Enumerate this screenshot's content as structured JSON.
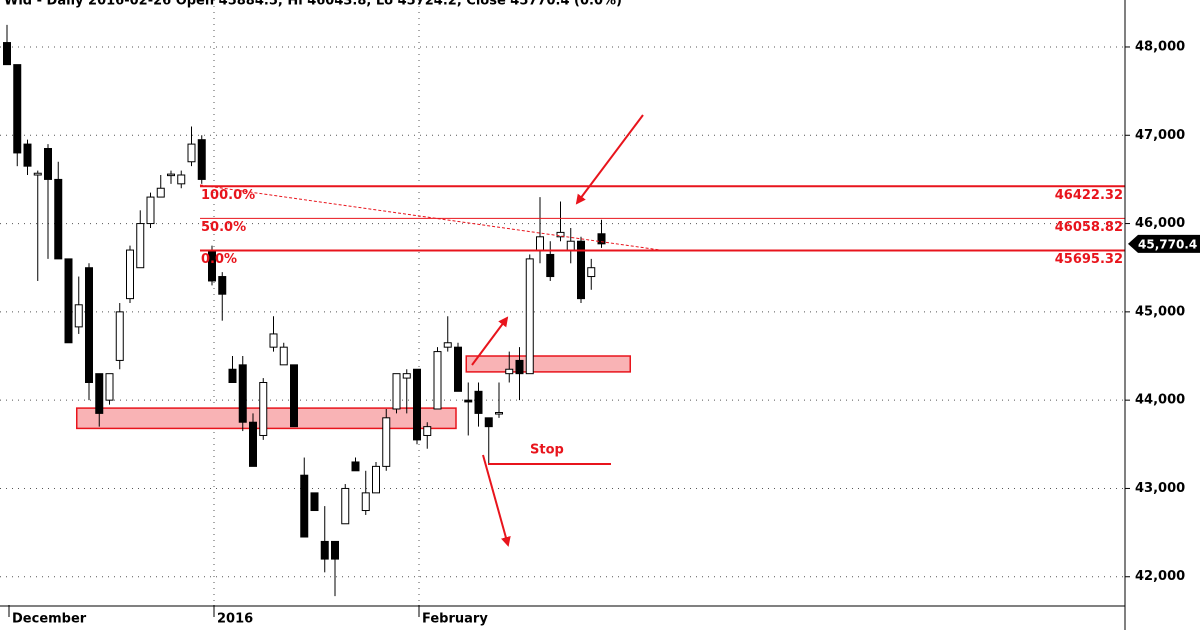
{
  "chart_data": {
    "type": "candlestick",
    "title": "Wld - Daily 2016-02-26 Open 45884.5, Hi 46043.8, Lo 45724.2, Close 45770.4 (0.0%)",
    "categories": [
      "December",
      null,
      null,
      null,
      null,
      null,
      null,
      null,
      null,
      null,
      null,
      null,
      null,
      null,
      null,
      null,
      null,
      null,
      null,
      null,
      "2016",
      null,
      null,
      null,
      null,
      null,
      null,
      null,
      null,
      null,
      null,
      null,
      null,
      null,
      null,
      null,
      null,
      null,
      null,
      null,
      "February",
      null,
      null,
      null,
      null,
      null,
      null,
      null,
      null,
      null,
      null,
      null,
      null,
      null,
      null,
      null,
      null,
      null,
      null
    ],
    "open": [
      48050,
      47800,
      46900,
      46550,
      46850,
      46500,
      45600,
      44830,
      45500,
      44300,
      44000,
      44450,
      45150,
      45500,
      46000,
      46300,
      46550,
      46450,
      46700,
      46950,
      45700,
      45400,
      44350,
      44400,
      43750,
      43600,
      44600,
      44400,
      44400,
      43150,
      42950,
      42400,
      42400,
      42600,
      43300,
      42750,
      42950,
      43250,
      43900,
      44250,
      44350,
      43600,
      43900,
      44600,
      44600,
      44000,
      44100,
      43800,
      43850,
      44300,
      44450,
      44300,
      45700,
      45650,
      45850,
      45700,
      45800,
      45400,
      45884.5
    ],
    "high": [
      48250,
      47800,
      46950,
      46600,
      46900,
      46700,
      45600,
      45400,
      45550,
      44300,
      44300,
      45100,
      45750,
      46150,
      46350,
      46550,
      46600,
      46600,
      47100,
      47000,
      45750,
      45450,
      44500,
      44500,
      43850,
      44250,
      44950,
      44650,
      44400,
      43350,
      42950,
      42800,
      42400,
      43050,
      43350,
      43200,
      43300,
      43900,
      44300,
      44350,
      44350,
      43750,
      44600,
      44950,
      44650,
      44200,
      44200,
      43800,
      44200,
      44550,
      44600,
      45650,
      46300,
      45800,
      46250,
      45950,
      45850,
      45600,
      46043.8
    ],
    "low": [
      47800,
      46650,
      46550,
      45350,
      45600,
      45600,
      44650,
      44750,
      44000,
      43700,
      43950,
      44350,
      45100,
      45500,
      45950,
      46300,
      46450,
      46400,
      46650,
      46450,
      45300,
      44900,
      44200,
      43650,
      43250,
      43550,
      44550,
      44400,
      43700,
      42450,
      42750,
      42050,
      41780,
      42600,
      43200,
      42700,
      42950,
      43200,
      43850,
      43850,
      43500,
      43450,
      43900,
      44550,
      44100,
      43600,
      43700,
      43270,
      43800,
      44200,
      44000,
      44300,
      45550,
      45350,
      45800,
      45550,
      45100,
      45250,
      45724.2
    ],
    "close": [
      47800,
      46800,
      46650,
      46570,
      46500,
      45600,
      44650,
      45080,
      44200,
      43850,
      44300,
      45000,
      45700,
      46000,
      46300,
      46400,
      46560,
      46550,
      46900,
      46500,
      45350,
      45200,
      44200,
      43750,
      43250,
      44200,
      44750,
      44600,
      43700,
      42450,
      42750,
      42200,
      42200,
      43000,
      43200,
      42950,
      43250,
      43800,
      44300,
      44300,
      43550,
      43700,
      44550,
      44650,
      44100,
      43980,
      43850,
      43700,
      43860,
      44350,
      44300,
      45600,
      45850,
      45400,
      45900,
      45800,
      45150,
      45500,
      45770.4
    ],
    "up_color": "#ffffff",
    "down_color": "#000000",
    "ylim": [
      41680,
      48532
    ],
    "yticks": [
      {
        "value": 42000,
        "label": "42,000"
      },
      {
        "value": 43000,
        "label": "43,000"
      },
      {
        "value": 44000,
        "label": "44,000"
      },
      {
        "value": 45000,
        "label": "45,000"
      },
      {
        "value": 46000,
        "label": "46,000"
      },
      {
        "value": 47000,
        "label": "47,000"
      },
      {
        "value": 48000,
        "label": "48,000"
      }
    ],
    "grid": true,
    "last_price": {
      "value": 45770.4,
      "label": "45,770.4"
    },
    "levels": [
      {
        "label": "100.0%",
        "value": 46422.32
      },
      {
        "label": "50.0%",
        "value": 46058.82
      },
      {
        "label": "0.0%",
        "value": 45695.32
      }
    ],
    "level_color": "#e8141c",
    "zones": [
      {
        "from": 7,
        "to": 44,
        "range": [
          43680,
          43910
        ]
      },
      {
        "from": 45,
        "to": 61,
        "range": [
          44320,
          44500
        ]
      }
    ],
    "zone_color": "#f9b3b5",
    "annotation": "Stop"
  }
}
